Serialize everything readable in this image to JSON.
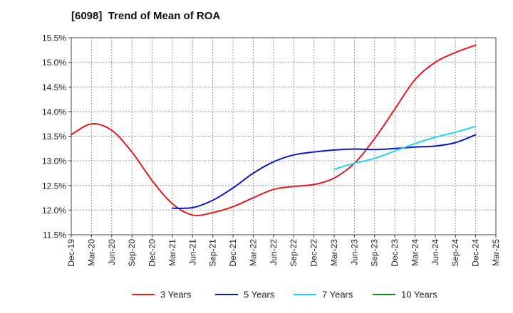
{
  "chart_data": {
    "type": "line",
    "title": "[6098]  Trend of Mean of ROA",
    "xlabel": "",
    "ylabel": "",
    "ylim": [
      11.5,
      15.5
    ],
    "yticks": [
      "11.5%",
      "12.0%",
      "12.5%",
      "13.0%",
      "13.5%",
      "14.0%",
      "14.5%",
      "15.0%",
      "15.5%"
    ],
    "yticks_values": [
      11.5,
      12.0,
      12.5,
      13.0,
      13.5,
      14.0,
      14.5,
      15.0,
      15.5
    ],
    "x_labels": [
      "Dec-19",
      "Mar-20",
      "Jun-20",
      "Sep-20",
      "Dec-20",
      "Mar-21",
      "Jun-21",
      "Sep-21",
      "Dec-21",
      "Mar-22",
      "Jun-22",
      "Sep-22",
      "Dec-22",
      "Mar-23",
      "Jun-23",
      "Sep-23",
      "Dec-23",
      "Mar-24",
      "Jun-24",
      "Sep-24",
      "Dec-24",
      "Mar-25"
    ],
    "grid": true,
    "legend_position": "bottom",
    "series": [
      {
        "name": "3 Years",
        "color": "#e31a1c",
        "points": [
          [
            "Dec-19",
            13.53
          ],
          [
            "Mar-20",
            13.75
          ],
          [
            "Jun-20",
            13.62
          ],
          [
            "Sep-20",
            13.18
          ],
          [
            "Dec-20",
            12.6
          ],
          [
            "Mar-21",
            12.13
          ],
          [
            "Jun-21",
            11.9
          ],
          [
            "Sep-21",
            11.95
          ],
          [
            "Dec-21",
            12.07
          ],
          [
            "Mar-22",
            12.25
          ],
          [
            "Jun-22",
            12.42
          ],
          [
            "Sep-22",
            12.48
          ],
          [
            "Dec-22",
            12.52
          ],
          [
            "Mar-23",
            12.65
          ],
          [
            "Jun-23",
            12.95
          ],
          [
            "Sep-23",
            13.45
          ],
          [
            "Dec-23",
            14.05
          ],
          [
            "Mar-24",
            14.65
          ],
          [
            "Jun-24",
            15.0
          ],
          [
            "Sep-24",
            15.2
          ],
          [
            "Dec-24",
            15.35
          ]
        ]
      },
      {
        "name": "5 Years",
        "color": "#0a17c4",
        "points": [
          [
            "Mar-21",
            12.04
          ],
          [
            "Jun-21",
            12.05
          ],
          [
            "Sep-21",
            12.2
          ],
          [
            "Dec-21",
            12.45
          ],
          [
            "Mar-22",
            12.75
          ],
          [
            "Jun-22",
            12.98
          ],
          [
            "Sep-22",
            13.12
          ],
          [
            "Dec-22",
            13.18
          ],
          [
            "Mar-23",
            13.22
          ],
          [
            "Jun-23",
            13.24
          ],
          [
            "Sep-23",
            13.23
          ],
          [
            "Dec-23",
            13.25
          ],
          [
            "Mar-24",
            13.28
          ],
          [
            "Jun-24",
            13.3
          ],
          [
            "Sep-24",
            13.37
          ],
          [
            "Dec-24",
            13.53
          ]
        ]
      },
      {
        "name": "7 Years",
        "color": "#22d3ee",
        "points": [
          [
            "Mar-23",
            12.83
          ],
          [
            "Jun-23",
            12.95
          ],
          [
            "Sep-23",
            13.05
          ],
          [
            "Dec-23",
            13.2
          ],
          [
            "Mar-24",
            13.35
          ],
          [
            "Jun-24",
            13.48
          ],
          [
            "Sep-24",
            13.58
          ],
          [
            "Dec-24",
            13.7
          ]
        ]
      },
      {
        "name": "10 Years",
        "color": "#1a8a1a",
        "points": []
      }
    ]
  }
}
